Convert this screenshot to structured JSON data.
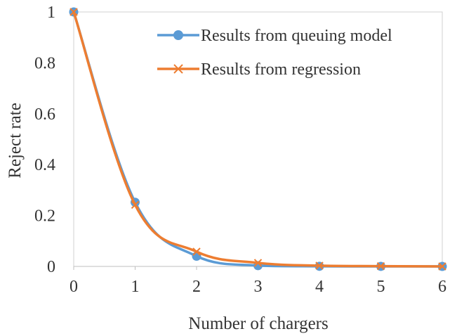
{
  "chart_data": {
    "type": "line",
    "xlabel": "Number of chargers",
    "ylabel": "Reject rate",
    "xlim": [
      0,
      6
    ],
    "ylim": [
      0,
      1
    ],
    "x_ticks": [
      "0",
      "1",
      "2",
      "3",
      "4",
      "5",
      "6"
    ],
    "y_ticks": [
      "0",
      "0.2",
      "0.4",
      "0.6",
      "0.8",
      "1"
    ],
    "grid": false,
    "legend_position": "top-right",
    "series": [
      {
        "name": "Results from queuing model",
        "color": "#5B9BD5",
        "marker": "circle",
        "x": [
          0,
          1,
          2,
          3,
          4,
          5,
          6
        ],
        "y": [
          1.0,
          0.252,
          0.04,
          0.003,
          0.0005,
          0.0001,
          0.0
        ]
      },
      {
        "name": "Results from regression",
        "color": "#ED7D31",
        "marker": "x",
        "x": [
          0,
          1,
          2,
          3,
          4,
          5,
          6
        ],
        "y": [
          1.0,
          0.242,
          0.058,
          0.014,
          0.003,
          0.001,
          0.0
        ]
      }
    ]
  }
}
